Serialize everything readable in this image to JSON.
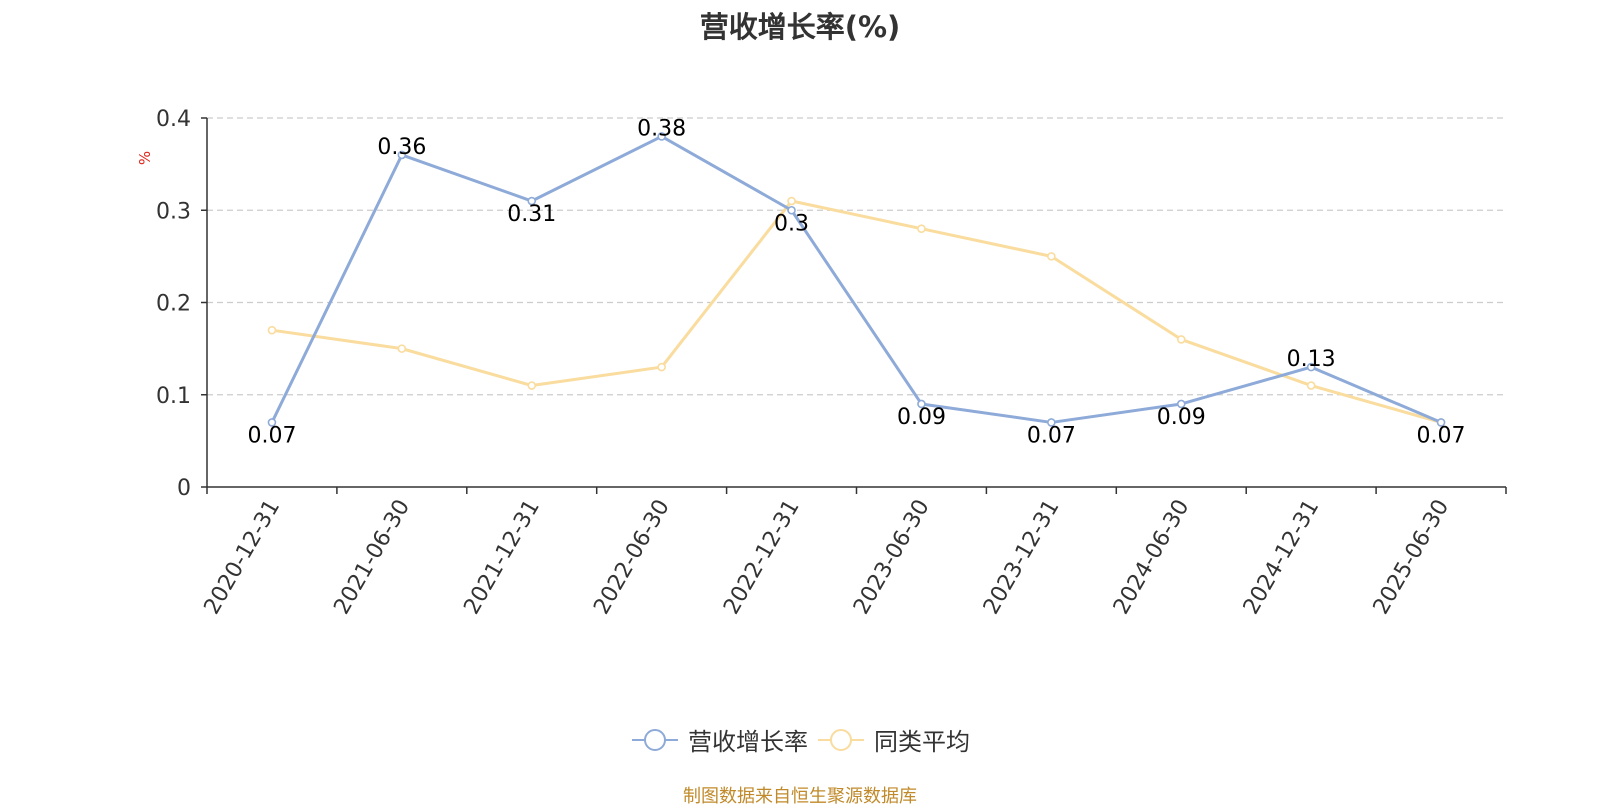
{
  "chart_data": {
    "type": "line",
    "title": "营收增长率(%)",
    "ylabel": "%",
    "xlabel": "",
    "ylim": [
      0,
      0.4
    ],
    "yticks": [
      0,
      0.1,
      0.2,
      0.3,
      0.4
    ],
    "ytick_labels": [
      "0",
      "0.1",
      "0.2",
      "0.3",
      "0.4"
    ],
    "grid": "horizontal dashed",
    "legend_position": "bottom-center",
    "categories": [
      "2020-12-31",
      "2021-06-30",
      "2021-12-31",
      "2022-06-30",
      "2022-12-31",
      "2023-06-30",
      "2023-12-31",
      "2024-06-30",
      "2024-12-31",
      "2025-06-30"
    ],
    "series": [
      {
        "name": "营收增长率",
        "color": "#8eaad8",
        "values": [
          0.07,
          0.36,
          0.31,
          0.38,
          0.3,
          0.09,
          0.07,
          0.09,
          0.13,
          0.07
        ],
        "labels": [
          "0.07",
          "0.36",
          "0.31",
          "0.38",
          "0.3",
          "0.09",
          "0.07",
          "0.09",
          "0.13",
          "0.07"
        ]
      },
      {
        "name": "同类平均",
        "color": "#f9dc9e",
        "values": [
          0.17,
          0.15,
          0.11,
          0.13,
          0.31,
          0.28,
          0.25,
          0.16,
          0.11,
          0.07
        ]
      }
    ]
  },
  "source_note": "制图数据来自恒生聚源数据库"
}
